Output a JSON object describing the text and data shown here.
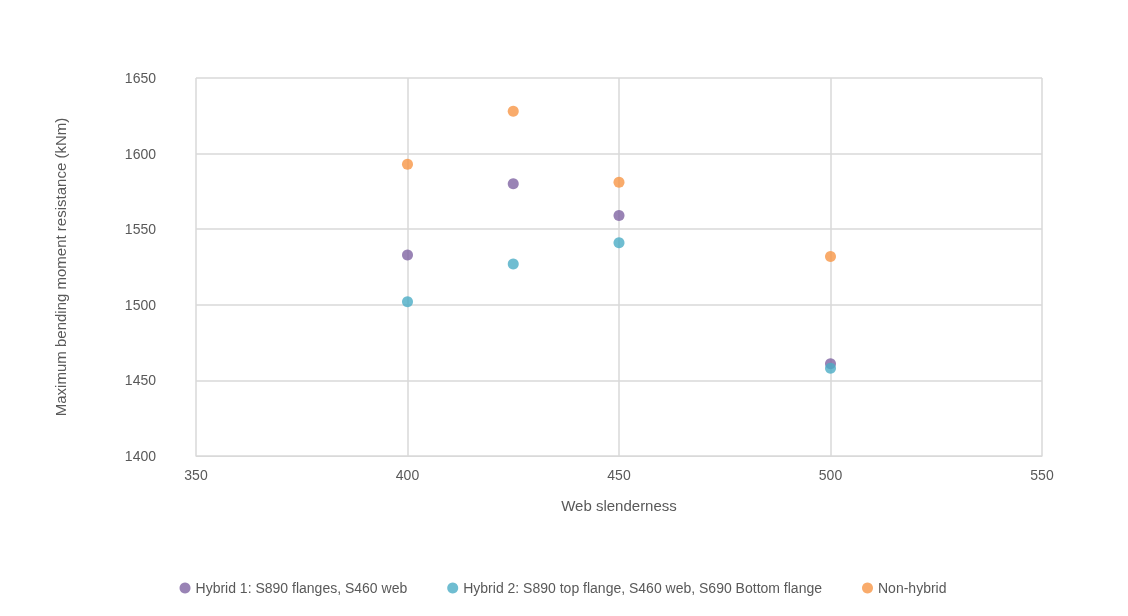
{
  "chart_data": {
    "type": "scatter",
    "xlabel": "Web slenderness",
    "ylabel": "Maximum bending moment resistance (kNm)",
    "x": [
      400,
      425,
      450,
      500
    ],
    "series": [
      {
        "name": "Hybrid 1: S890 flanges, S460 web",
        "color": "#8064a2",
        "values": [
          1533,
          1580,
          1559,
          1461
        ]
      },
      {
        "name": "Hybrid 2: S890 top flange, S460 web, S690 Bottom flange",
        "color": "#4bacc6",
        "values": [
          1502,
          1527,
          1541,
          1458
        ]
      },
      {
        "name": "Non-hybrid",
        "color": "#f79646",
        "values": [
          1593,
          1628,
          1581,
          1532
        ]
      }
    ],
    "xlim": [
      350,
      550
    ],
    "xticks": [
      350,
      400,
      450,
      500,
      550
    ],
    "ylim": [
      1400,
      1650
    ],
    "yticks": [
      1400,
      1450,
      1500,
      1550,
      1600,
      1650
    ],
    "grid": true,
    "legend": "bottom",
    "marker": "circle"
  }
}
